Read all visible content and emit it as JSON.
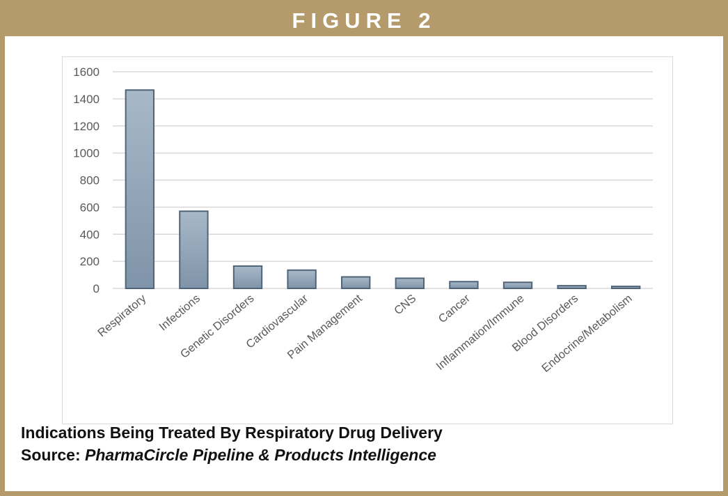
{
  "figure_label": "FIGURE 2",
  "caption": {
    "line1": "Indications Being Treated By Respiratory Drug Delivery",
    "source_prefix": "Source: ",
    "source_name": "PharmaCircle Pipeline & Products Intelligence"
  },
  "colors": {
    "frame": "#b59b6b",
    "bar_top": "#a8b8c8",
    "bar_bottom": "#7f94a9",
    "bar_stroke": "#4f6478",
    "grid": "#d9d9d9",
    "axis_text": "#595959"
  },
  "chart_data": {
    "type": "bar",
    "categories": [
      "Respiratory",
      "Infections",
      "Genetic Disorders",
      "Cardiovascular",
      "Pain Management",
      "CNS",
      "Cancer",
      "Inflammation/Immune",
      "Blood Disorders",
      "Endocrine/Metabolism"
    ],
    "values": [
      1465,
      570,
      165,
      135,
      85,
      75,
      50,
      45,
      20,
      15
    ],
    "ylim": [
      0,
      1600
    ],
    "yticks": [
      0,
      200,
      400,
      600,
      800,
      1000,
      1200,
      1400,
      1600
    ],
    "title": "",
    "xlabel": "",
    "ylabel": "",
    "grid": true,
    "legend": "none"
  }
}
